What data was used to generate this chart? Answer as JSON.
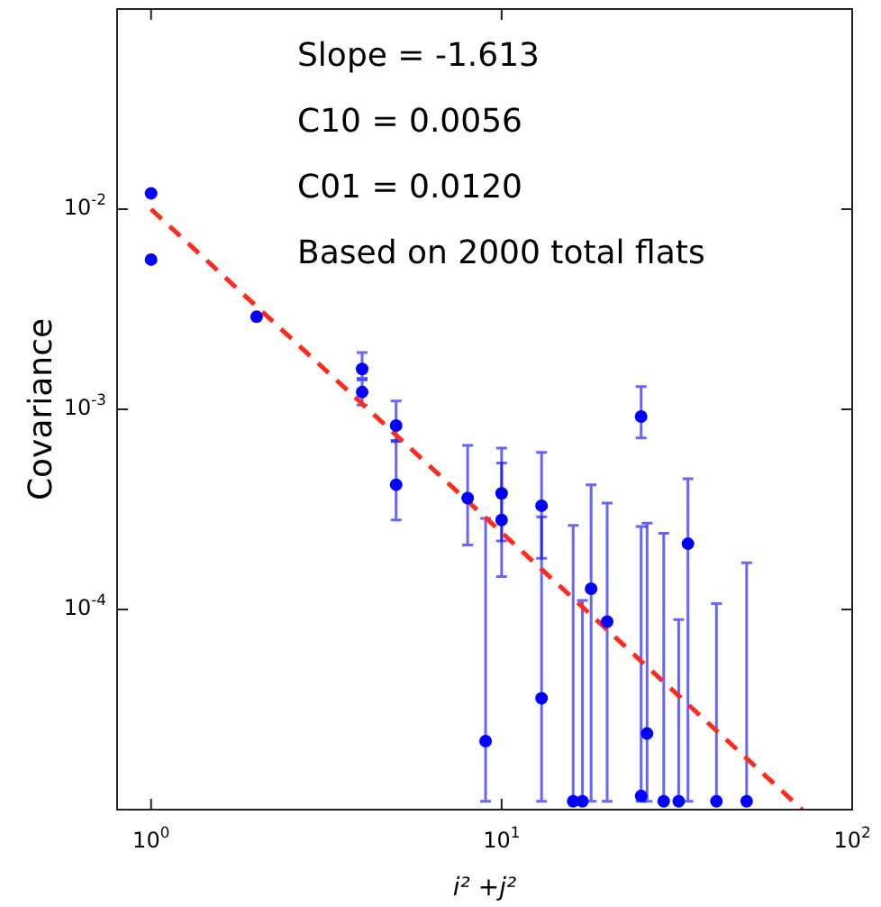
{
  "chart_data": {
    "type": "scatter",
    "xlabel": "i² +j²",
    "ylabel": "Covariance",
    "log": "xy",
    "xlim": [
      0.8,
      100
    ],
    "ylim": [
      1e-05,
      0.1
    ],
    "xticks": [
      {
        "value": 1,
        "label": "10$^{0}$"
      },
      {
        "value": 10,
        "label": "10$^{1}$"
      },
      {
        "value": 100,
        "label": "10$^{2}$"
      }
    ],
    "yticks": [
      {
        "value": 0.0001,
        "label": "10$^{-4}$"
      },
      {
        "value": 0.001,
        "label": "10$^{-3}$"
      },
      {
        "value": 0.01,
        "label": "10$^{-2}$"
      }
    ],
    "annotations": [
      "Slope = -1.613",
      "C10 = 0.0056",
      "C01 = 0.0120",
      "Based on 2000 total flats"
    ],
    "series": [
      {
        "color": "#0000ff",
        "marker": "circle",
        "x": [
          1,
          1,
          2,
          4,
          4,
          5,
          5,
          8,
          9,
          10,
          10,
          13,
          13,
          18,
          20,
          25,
          25,
          26,
          34
        ],
        "values": [
          0.012,
          0.0056,
          0.0029,
          0.00159,
          0.00122,
          0.00083,
          0.00042,
          0.00036,
          2.2e-05,
          0.00038,
          0.00028,
          0.00033,
          3.6e-05,
          0.000127,
          8.7e-05,
          0.00092,
          1.17e-05,
          2.4e-05,
          0.000213
        ],
        "errors": [
          null,
          null,
          null,
          [
            0.00143,
            0.00192
          ],
          [
            0.00105,
            0.0014
          ],
          [
            0.00069,
            0.0011
          ],
          [
            0.00028,
            0.0007
          ],
          [
            0.00021,
            0.00066
          ],
          [
            1.1e-05,
            0.000285
          ],
          [
            0.00022,
            0.00064
          ],
          [
            0.000146,
            0.00054
          ],
          [
            0.00018,
            0.00061
          ],
          [
            1.1e-05,
            0.00029
          ],
          [
            1.1e-05,
            0.00042
          ],
          [
            1.1e-05,
            0.00034
          ],
          [
            0.00072,
            0.0013
          ],
          [
            1.1e-05,
            0.00026
          ],
          [
            1.1e-05,
            0.00027
          ],
          [
            1.1e-05,
            0.00045
          ]
        ]
      },
      {
        "color": "#0000ff",
        "marker": "circle",
        "x": [
          16,
          17,
          29,
          32,
          41,
          50
        ],
        "values": [
          1.1e-05,
          1.1e-05,
          1.1e-05,
          1.1e-05,
          1.1e-05,
          1.1e-05
        ],
        "errors": [
          [
            1.1e-05,
            0.000263
          ],
          [
            1.1e-05,
            0.000111
          ],
          [
            1.1e-05,
            0.00024
          ],
          [
            1.1e-05,
            8.9e-05
          ],
          [
            1.1e-05,
            0.000107
          ],
          [
            1.1e-05,
            0.000171
          ]
        ]
      },
      {
        "type": "line",
        "color": "#ff2a1a",
        "marker": "none",
        "line_style": "dashed",
        "x": [
          1,
          72
        ],
        "values": [
          0.01,
          1e-05
        ]
      }
    ]
  }
}
